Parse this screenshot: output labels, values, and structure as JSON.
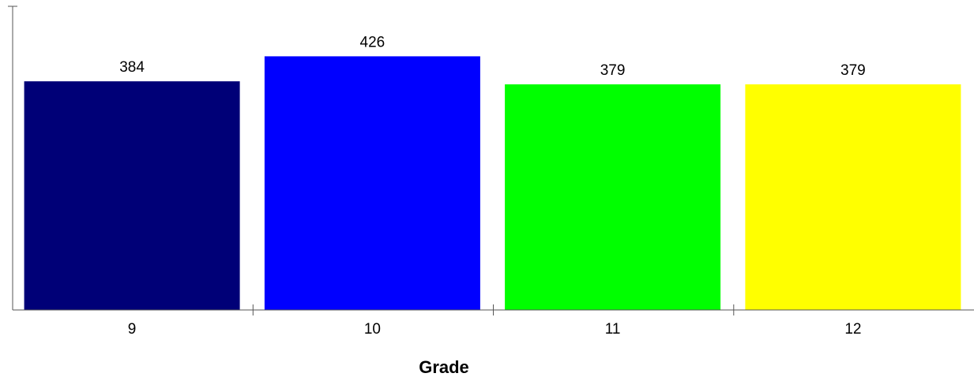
{
  "chart_data": {
    "type": "bar",
    "title": "",
    "xlabel": "Grade",
    "ylabel": "",
    "categories": [
      "9",
      "10",
      "11",
      "12"
    ],
    "values": [
      384,
      426,
      379,
      379
    ],
    "value_labels": [
      "384",
      "426",
      "379",
      "379"
    ],
    "colors": [
      "#000077",
      "#0000ff",
      "#00ff00",
      "#ffff00"
    ],
    "ylim": [
      0,
      510
    ],
    "grid": false,
    "legend": "none"
  }
}
